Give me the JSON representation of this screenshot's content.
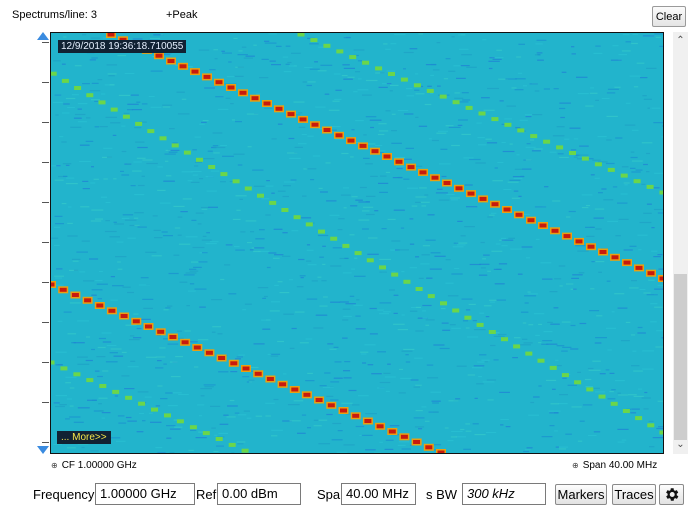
{
  "header": {
    "spectrums_per_line": "Spectrums/line: 3",
    "detector": "+Peak",
    "clear_label": "Clear"
  },
  "display": {
    "timestamp": "12/9/2018 19:36:18.710055",
    "more_label": "... More>>"
  },
  "axis": {
    "cf_label": "CF 1.00000 GHz",
    "span_label": "Span 40.00 MHz"
  },
  "settings_bar": {
    "frequency_label": "Frequency",
    "frequency_value": "1.00000 GHz",
    "ref_level_label": "Ref Lev",
    "ref_level_value": "0.00 dBm",
    "span_label": "Span",
    "span_value": "40.00 MHz",
    "rbw_label": "s BW",
    "rbw_value": "300 kHz",
    "markers_label": "Markers",
    "traces_label": "Traces"
  },
  "colors": {
    "background": "#22b4cc",
    "signal_peak": "#c81a0e",
    "signal_mid": "#e8a012",
    "harmonic": "#6bd64a",
    "accent_blue": "#3a8be0"
  },
  "icons": {
    "collapse": "collapse-box-icon",
    "settings": "gear-icon"
  }
}
